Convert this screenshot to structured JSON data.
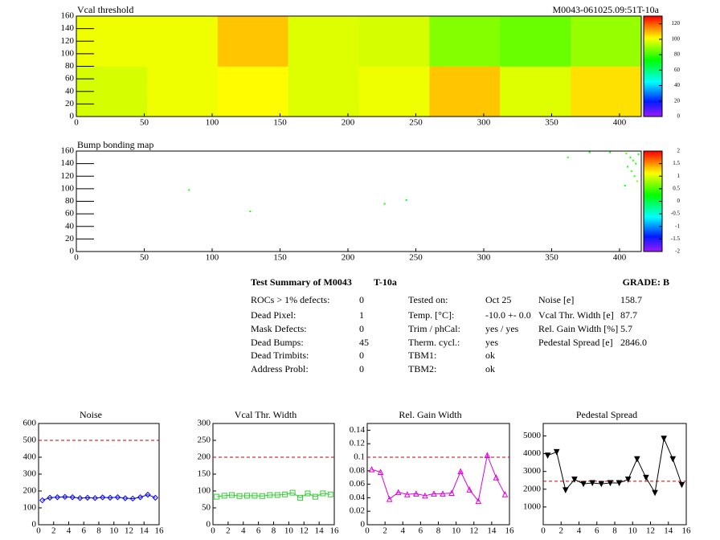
{
  "chart_data": [
    {
      "type": "heatmap",
      "title": "Vcal threshold",
      "corner_label": "M0043-061025.09:51T-10a",
      "xlim": [
        0,
        416
      ],
      "ylim": [
        0,
        160
      ],
      "xticks": [
        0,
        50,
        100,
        150,
        200,
        250,
        300,
        350,
        400
      ],
      "yticks": [
        0,
        20,
        40,
        60,
        80,
        100,
        120,
        140,
        160
      ],
      "zlim": [
        0,
        130
      ],
      "zticks": [
        0,
        20,
        40,
        60,
        80,
        100,
        120
      ],
      "z": [
        [
          97,
          100,
          102,
          98,
          100,
          108,
          98,
          105
        ],
        [
          100,
          100,
          108,
          98,
          97,
          88,
          85,
          90
        ]
      ]
    },
    {
      "type": "scatter-map",
      "title": "Bump bonding map",
      "xlim": [
        0,
        416
      ],
      "ylim": [
        0,
        160
      ],
      "xticks": [
        0,
        50,
        100,
        150,
        200,
        250,
        300,
        350,
        400
      ],
      "yticks": [
        0,
        20,
        40,
        60,
        80,
        100,
        120,
        140,
        160
      ],
      "zlim": [
        -2,
        2
      ],
      "zticks": [
        -2,
        {
          "value": -1.5,
          "label": "-1.5"
        },
        -1,
        {
          "value": -0.5,
          "label": "-0.5"
        },
        0,
        0.5,
        1,
        1.5,
        2
      ],
      "x": [
        83,
        128,
        227,
        243,
        362,
        378,
        393,
        405,
        408,
        410,
        412,
        406,
        409,
        411,
        413,
        404,
        414
      ],
      "y": [
        98,
        64,
        76,
        82,
        150,
        158,
        158,
        156,
        150,
        145,
        140,
        135,
        128,
        120,
        112,
        105,
        155
      ],
      "values": [
        0.3,
        0.4,
        0.3,
        0.2,
        0.4,
        0.3,
        0.3,
        0.5,
        0.3,
        0.4,
        0.3,
        0.3,
        0.5,
        0.4,
        0.7,
        0.3,
        0.3
      ]
    },
    {
      "type": "line",
      "title": "Noise",
      "color": "#0000ff",
      "marker": "diamond",
      "xlim": [
        0,
        16
      ],
      "ylim": [
        0,
        600
      ],
      "xticks": [
        0,
        2,
        4,
        6,
        8,
        10,
        12,
        14,
        16
      ],
      "yticks": [
        0,
        100,
        200,
        300,
        400,
        500,
        600
      ],
      "reference": 500,
      "x": [
        0.5,
        1.5,
        2.5,
        3.5,
        4.5,
        5.5,
        6.5,
        7.5,
        8.5,
        9.5,
        10.5,
        11.5,
        12.5,
        13.5,
        14.5,
        15.5
      ],
      "values": [
        145,
        160,
        163,
        165,
        163,
        158,
        160,
        158,
        162,
        160,
        163,
        157,
        155,
        163,
        178,
        160
      ]
    },
    {
      "type": "line",
      "title": "Vcal Thr. Width",
      "color": "#33cc33",
      "marker": "square",
      "xlim": [
        0,
        16
      ],
      "ylim": [
        0,
        300
      ],
      "xticks": [
        0,
        2,
        4,
        6,
        8,
        10,
        12,
        14,
        16
      ],
      "yticks": [
        0,
        50,
        100,
        150,
        200,
        250,
        300
      ],
      "reference": 200,
      "x": [
        0.5,
        1.5,
        2.5,
        3.5,
        4.5,
        5.5,
        6.5,
        7.5,
        8.5,
        9.5,
        10.5,
        11.5,
        12.5,
        13.5,
        14.5,
        15.5
      ],
      "values": [
        83,
        86,
        88,
        85,
        86,
        86,
        85,
        88,
        88,
        90,
        95,
        80,
        93,
        83,
        93,
        90
      ]
    },
    {
      "type": "line",
      "title": "Rel. Gain Width",
      "color": "#dd00dd",
      "marker": "triangle",
      "xlim": [
        0,
        16
      ],
      "ylim": [
        0,
        0.15
      ],
      "xticks": [
        0,
        2,
        4,
        6,
        8,
        10,
        12,
        14,
        16
      ],
      "yticks": [
        0,
        0.02,
        0.04,
        0.06,
        0.08,
        0.1,
        0.12,
        0.14
      ],
      "reference": 0.1,
      "x": [
        0.5,
        1.5,
        2.5,
        3.5,
        4.5,
        5.5,
        6.5,
        7.5,
        8.5,
        9.5,
        10.5,
        11.5,
        12.5,
        13.5,
        14.5,
        15.5
      ],
      "values": [
        0.082,
        0.078,
        0.038,
        0.048,
        0.045,
        0.046,
        0.043,
        0.046,
        0.046,
        0.047,
        0.079,
        0.052,
        0.035,
        0.103,
        0.07,
        0.045
      ]
    },
    {
      "type": "line",
      "title": "Pedestal Spread",
      "color": "#000000",
      "marker": "triangle-down",
      "xlim": [
        0,
        16
      ],
      "ylim": [
        0,
        5700
      ],
      "xticks": [
        0,
        2,
        4,
        6,
        8,
        10,
        12,
        14,
        16
      ],
      "yticks": [
        1000,
        2000,
        3000,
        4000,
        5000
      ],
      "reference": 2450,
      "x": [
        0.5,
        1.5,
        2.5,
        3.5,
        4.5,
        5.5,
        6.5,
        7.5,
        8.5,
        9.5,
        10.5,
        11.5,
        12.5,
        13.5,
        14.5,
        15.5
      ],
      "values": [
        3900,
        4100,
        1950,
        2550,
        2300,
        2350,
        2300,
        2350,
        2350,
        2550,
        3700,
        2650,
        1800,
        4850,
        3700,
        2250
      ]
    }
  ],
  "summary": {
    "title": "Test Summary of M0043",
    "temperature": "T-10a",
    "grade": "GRADE:  B",
    "col1": [
      [
        "ROCs > 1% defects:",
        "0"
      ],
      [
        "Dead Pixel:",
        "1"
      ],
      [
        "Mask Defects:",
        "0"
      ],
      [
        "Dead Bumps:",
        "45"
      ],
      [
        "Dead Trimbits:",
        "0"
      ],
      [
        "Address Probl:",
        "0"
      ]
    ],
    "col2": [
      [
        "Tested on:",
        "Oct 25"
      ],
      [
        "Temp. [°C]:",
        "-10.0 +- 0.0"
      ],
      [
        "Trim / phCal:",
        "yes / yes"
      ],
      [
        "Therm. cycl.:",
        "yes"
      ],
      [
        "TBM1:",
        "ok"
      ],
      [
        "TBM2:",
        "ok"
      ]
    ],
    "col3": [
      [
        "Noise [e]",
        "158.7"
      ],
      [
        "Vcal Thr. Width [e]",
        "87.7"
      ],
      [
        "Rel. Gain Width [%]",
        "5.7"
      ],
      [
        "Pedestal Spread [e]",
        "2846.0"
      ]
    ]
  }
}
